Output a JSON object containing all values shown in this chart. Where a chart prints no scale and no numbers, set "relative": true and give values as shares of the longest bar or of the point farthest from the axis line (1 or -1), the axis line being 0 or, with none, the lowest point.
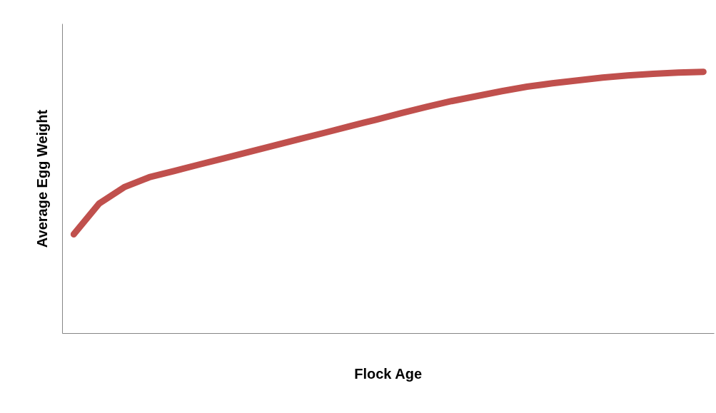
{
  "chart_data": {
    "type": "line",
    "relative": true,
    "xlabel": "Flock Age",
    "ylabel": "Average Egg Weight",
    "categories": [
      null,
      null,
      null,
      null,
      null,
      null,
      null,
      null,
      null,
      null,
      null,
      null,
      null,
      null,
      null,
      null,
      null,
      null,
      null,
      null,
      null,
      null,
      null,
      null,
      null,
      null
    ],
    "series": [
      {
        "color": "#c0504d",
        "values": [
          0.379,
          0.496,
          0.559,
          0.597,
          0.621,
          0.646,
          0.67,
          0.695,
          0.719,
          0.744,
          0.768,
          0.793,
          0.817,
          0.842,
          0.866,
          0.888,
          0.907,
          0.926,
          0.943,
          0.956,
          0.967,
          0.978,
          0.986,
          0.992,
          0.997,
          1
        ]
      }
    ],
    "marker": "none",
    "line_style": "solid"
  }
}
